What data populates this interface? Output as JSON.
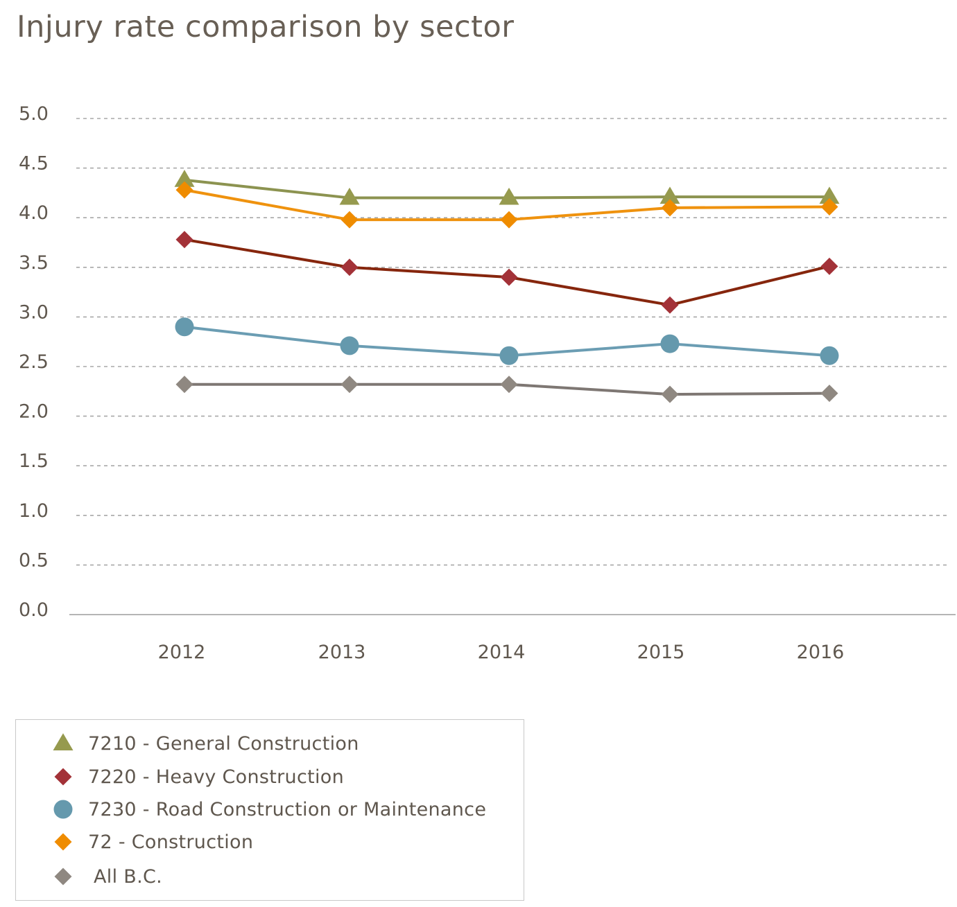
{
  "chart_data": {
    "type": "line",
    "title": "Injury rate comparison by sector",
    "xlabel": "",
    "ylabel": "",
    "categories": [
      "2012",
      "2013",
      "2014",
      "2015",
      "2016"
    ],
    "ylim": [
      0,
      5
    ],
    "yticks": [
      "0.0",
      "0.5",
      "1.0",
      "1.5",
      "2.0",
      "2.5",
      "3.0",
      "3.5",
      "4.0",
      "4.5",
      "5.0"
    ],
    "grid": true,
    "legend_position": "bottom-left",
    "series": [
      {
        "name": "7210 - General Construction",
        "marker": "triangle",
        "line_color": "#8c9350",
        "marker_color": "#969a4e",
        "values": [
          4.38,
          4.2,
          4.2,
          4.21,
          4.21
        ]
      },
      {
        "name": "72 - Construction",
        "marker": "diamond",
        "line_color": "#ef920e",
        "marker_color": "#ef8c00",
        "values": [
          4.28,
          3.98,
          3.98,
          4.1,
          4.11
        ]
      },
      {
        "name": "7220 - Heavy Construction",
        "marker": "diamond",
        "line_color": "#86260d",
        "marker_color": "#a33238",
        "values": [
          3.78,
          3.5,
          3.4,
          3.12,
          3.51
        ]
      },
      {
        "name": "7230 - Road Construction or Maintenance",
        "marker": "circle",
        "line_color": "#6b9db3",
        "marker_color": "#6599ad",
        "values": [
          2.9,
          2.71,
          2.61,
          2.73,
          2.61
        ]
      },
      {
        "name": "All B.C.",
        "marker": "diamond",
        "line_color": "#7e7773",
        "marker_color": "#8f8881",
        "values": [
          2.32,
          2.32,
          2.32,
          2.22,
          2.23
        ]
      }
    ]
  },
  "legend": {
    "items": [
      {
        "label": "7210 - General Construction",
        "marker": "triangle",
        "color": "#969a4e"
      },
      {
        "label": "7220 - Heavy Construction",
        "marker": "diamond",
        "color": "#a33238"
      },
      {
        "label": "7230 - Road Construction or Maintenance",
        "marker": "circle",
        "color": "#6599ad"
      },
      {
        "label": "72 - Construction",
        "marker": "diamond",
        "color": "#ef8c00"
      },
      {
        "label": "All B.C.",
        "marker": "diamond",
        "color": "#8f8881"
      }
    ]
  },
  "colors": {
    "text": "#5f574e",
    "grid": "#a8a8a8",
    "axis": "#b0b0b0"
  }
}
